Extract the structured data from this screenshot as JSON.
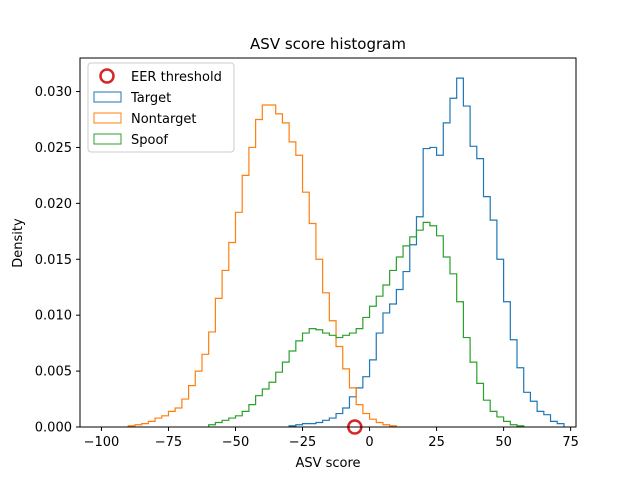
{
  "chart_data": {
    "type": "histogram",
    "title": "ASV score histogram",
    "xlabel": "ASV score",
    "ylabel": "Density",
    "xlim": [
      -108,
      77
    ],
    "ylim": [
      0,
      0.033
    ],
    "xticks": [
      -100,
      -75,
      -50,
      -25,
      0,
      25,
      50,
      75
    ],
    "yticks": [
      0.0,
      0.005,
      0.01,
      0.015,
      0.02,
      0.025,
      0.03
    ],
    "ytick_labels": [
      "0.000",
      "0.005",
      "0.010",
      "0.015",
      "0.020",
      "0.025",
      "0.030"
    ],
    "bin_width": 2.5,
    "legend_position": "upper left",
    "series": [
      {
        "name": "Target",
        "color": "#1f77b4",
        "edges_start": -30,
        "densities": [
          0.0001,
          0.0002,
          0.0003,
          0.0003,
          0.0004,
          0.0006,
          0.0008,
          0.0012,
          0.0017,
          0.0027,
          0.0035,
          0.0045,
          0.006,
          0.0084,
          0.0102,
          0.011,
          0.0123,
          0.0139,
          0.0163,
          0.0188,
          0.0249,
          0.025,
          0.0243,
          0.0272,
          0.0294,
          0.0312,
          0.0287,
          0.0251,
          0.024,
          0.0206,
          0.0185,
          0.015,
          0.0112,
          0.0078,
          0.0053,
          0.0031,
          0.0023,
          0.0014,
          0.0011,
          0.0005,
          0.0003
        ]
      },
      {
        "name": "Nontarget",
        "color": "#ff7f0e",
        "edges_start": -90,
        "densities": [
          0.0001,
          0.0002,
          0.0003,
          0.0005,
          0.0008,
          0.001,
          0.0014,
          0.0017,
          0.0025,
          0.0037,
          0.005,
          0.0065,
          0.0085,
          0.0115,
          0.014,
          0.0165,
          0.0192,
          0.0225,
          0.025,
          0.0275,
          0.0288,
          0.0288,
          0.028,
          0.0272,
          0.0255,
          0.0243,
          0.021,
          0.0182,
          0.015,
          0.012,
          0.0095,
          0.0072,
          0.0052,
          0.0035,
          0.002,
          0.0012,
          0.0007,
          0.0004,
          0.0002,
          0.0001
        ]
      },
      {
        "name": "Spoof",
        "color": "#2ca02c",
        "edges_start": -60,
        "densities": [
          0.0002,
          0.0004,
          0.0006,
          0.0008,
          0.001,
          0.0014,
          0.002,
          0.0028,
          0.0034,
          0.004,
          0.0049,
          0.0058,
          0.0068,
          0.0077,
          0.0084,
          0.0088,
          0.0087,
          0.0084,
          0.0082,
          0.008,
          0.0082,
          0.0084,
          0.0088,
          0.0098,
          0.0108,
          0.0117,
          0.0127,
          0.014,
          0.0152,
          0.0162,
          0.017,
          0.0176,
          0.0183,
          0.018,
          0.0171,
          0.0152,
          0.0137,
          0.0112,
          0.008,
          0.0058,
          0.0039,
          0.0024,
          0.0014,
          0.0009,
          0.0005,
          0.0002,
          0.0001
        ]
      }
    ],
    "markers": [
      {
        "name": "EER threshold",
        "x": -5.5,
        "y": 0.0,
        "color": "#d62728",
        "shape": "hollow-circle"
      }
    ]
  }
}
